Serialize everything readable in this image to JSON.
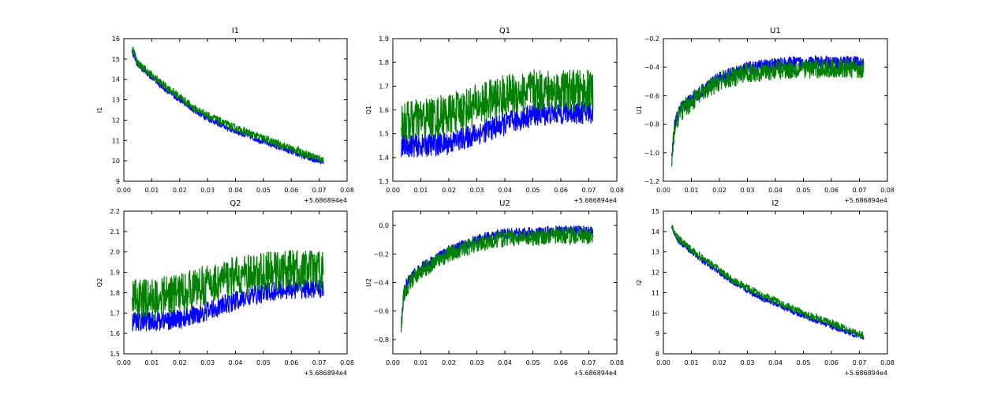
{
  "chart_data": [
    {
      "type": "line",
      "title": "I1",
      "xlabel": "",
      "ylabel": "I1",
      "xlim": [
        0.0,
        0.08
      ],
      "ylim": [
        9,
        16
      ],
      "xticks": [
        "0.00",
        "0.01",
        "0.02",
        "0.03",
        "0.04",
        "0.05",
        "0.06",
        "0.07",
        "0.08"
      ],
      "yticks": [
        "9",
        "10",
        "11",
        "12",
        "13",
        "14",
        "15",
        "16"
      ],
      "offset_label": "+5.686894e4",
      "series": [
        {
          "name": "blue",
          "color": "#0000ff",
          "x": [
            0.003,
            0.005,
            0.01,
            0.015,
            0.02,
            0.025,
            0.03,
            0.035,
            0.04,
            0.045,
            0.05,
            0.055,
            0.06,
            0.065,
            0.0715
          ],
          "y": [
            15.4,
            14.7,
            14.1,
            13.5,
            13.0,
            12.5,
            12.1,
            11.75,
            11.45,
            11.2,
            10.95,
            10.7,
            10.45,
            10.2,
            9.95
          ],
          "noise": 0.15
        },
        {
          "name": "green",
          "color": "#008000",
          "x": [
            0.003,
            0.005,
            0.01,
            0.015,
            0.02,
            0.025,
            0.03,
            0.035,
            0.04,
            0.045,
            0.05,
            0.055,
            0.06,
            0.065,
            0.0715
          ],
          "y": [
            15.6,
            14.8,
            14.2,
            13.65,
            13.15,
            12.6,
            12.25,
            11.9,
            11.6,
            11.35,
            11.1,
            10.85,
            10.6,
            10.35,
            10.05
          ],
          "noise": 0.2
        }
      ]
    },
    {
      "type": "line",
      "title": "Q1",
      "xlabel": "",
      "ylabel": "Q1",
      "xlim": [
        0.0,
        0.08
      ],
      "ylim": [
        1.3,
        1.9
      ],
      "xticks": [
        "0.00",
        "0.01",
        "0.02",
        "0.03",
        "0.04",
        "0.05",
        "0.06",
        "0.07",
        "0.08"
      ],
      "yticks": [
        "1.3",
        "1.4",
        "1.5",
        "1.6",
        "1.7",
        "1.8",
        "1.9"
      ],
      "offset_label": "+5.686894e4",
      "series": [
        {
          "name": "blue",
          "color": "#0000ff",
          "x": [
            0.003,
            0.01,
            0.02,
            0.03,
            0.04,
            0.05,
            0.06,
            0.0715
          ],
          "y": [
            1.45,
            1.45,
            1.46,
            1.5,
            1.54,
            1.58,
            1.59,
            1.59
          ],
          "noise": 0.05
        },
        {
          "name": "green",
          "color": "#008000",
          "x": [
            0.003,
            0.01,
            0.02,
            0.03,
            0.04,
            0.05,
            0.06,
            0.0715
          ],
          "y": [
            1.55,
            1.56,
            1.58,
            1.62,
            1.66,
            1.68,
            1.68,
            1.68
          ],
          "noise": 0.09
        }
      ]
    },
    {
      "type": "line",
      "title": "U1",
      "xlabel": "",
      "ylabel": "U1",
      "xlim": [
        0.0,
        0.08
      ],
      "ylim": [
        -1.2,
        -0.2
      ],
      "xticks": [
        "0.00",
        "0.01",
        "0.02",
        "0.03",
        "0.04",
        "0.05",
        "0.06",
        "0.07",
        "0.08"
      ],
      "yticks": [
        "−1.2",
        "−1.0",
        "−0.8",
        "−0.6",
        "−0.4",
        "−0.2"
      ],
      "offset_label": "+5.686894e4",
      "series": [
        {
          "name": "blue",
          "color": "#0000ff",
          "x": [
            0.003,
            0.004,
            0.006,
            0.01,
            0.015,
            0.02,
            0.03,
            0.04,
            0.05,
            0.06,
            0.0715
          ],
          "y": [
            -1.05,
            -0.8,
            -0.7,
            -0.62,
            -0.55,
            -0.48,
            -0.41,
            -0.38,
            -0.37,
            -0.37,
            -0.37
          ],
          "noise": 0.05
        },
        {
          "name": "green",
          "color": "#008000",
          "x": [
            0.003,
            0.004,
            0.006,
            0.01,
            0.015,
            0.02,
            0.03,
            0.04,
            0.05,
            0.06,
            0.0715
          ],
          "y": [
            -1.08,
            -0.82,
            -0.72,
            -0.64,
            -0.57,
            -0.5,
            -0.44,
            -0.42,
            -0.41,
            -0.41,
            -0.41
          ],
          "noise": 0.07
        }
      ]
    },
    {
      "type": "line",
      "title": "Q2",
      "xlabel": "",
      "ylabel": "Q2",
      "xlim": [
        0.0,
        0.08
      ],
      "ylim": [
        1.5,
        2.2
      ],
      "xticks": [
        "0.00",
        "0.01",
        "0.02",
        "0.03",
        "0.04",
        "0.05",
        "0.06",
        "0.07",
        "0.08"
      ],
      "yticks": [
        "1.5",
        "1.6",
        "1.7",
        "1.8",
        "1.9",
        "2.0",
        "2.1",
        "2.2"
      ],
      "offset_label": "+5.686894e4",
      "series": [
        {
          "name": "blue",
          "color": "#0000ff",
          "x": [
            0.003,
            0.01,
            0.02,
            0.03,
            0.04,
            0.05,
            0.06,
            0.0715
          ],
          "y": [
            1.66,
            1.66,
            1.67,
            1.71,
            1.76,
            1.8,
            1.82,
            1.82
          ],
          "noise": 0.05
        },
        {
          "name": "green",
          "color": "#008000",
          "x": [
            0.003,
            0.01,
            0.02,
            0.03,
            0.04,
            0.05,
            0.06,
            0.0715
          ],
          "y": [
            1.77,
            1.77,
            1.8,
            1.84,
            1.88,
            1.9,
            1.91,
            1.91
          ],
          "noise": 0.1
        }
      ]
    },
    {
      "type": "line",
      "title": "U2",
      "xlabel": "",
      "ylabel": "U2",
      "xlim": [
        0.0,
        0.08
      ],
      "ylim": [
        -0.9,
        0.1
      ],
      "xticks": [
        "0.00",
        "0.01",
        "0.02",
        "0.03",
        "0.04",
        "0.05",
        "0.06",
        "0.07",
        "0.08"
      ],
      "yticks": [
        "−0.8",
        "−0.6",
        "−0.4",
        "−0.2",
        "0.0"
      ],
      "offset_label": "+5.686894e4",
      "series": [
        {
          "name": "blue",
          "color": "#0000ff",
          "x": [
            0.003,
            0.004,
            0.006,
            0.01,
            0.015,
            0.02,
            0.03,
            0.04,
            0.05,
            0.06,
            0.0715
          ],
          "y": [
            -0.7,
            -0.45,
            -0.37,
            -0.3,
            -0.24,
            -0.18,
            -0.1,
            -0.06,
            -0.05,
            -0.04,
            -0.04
          ],
          "noise": 0.04
        },
        {
          "name": "green",
          "color": "#008000",
          "x": [
            0.003,
            0.004,
            0.006,
            0.01,
            0.015,
            0.02,
            0.03,
            0.04,
            0.05,
            0.06,
            0.0715
          ],
          "y": [
            -0.72,
            -0.48,
            -0.4,
            -0.32,
            -0.26,
            -0.2,
            -0.13,
            -0.09,
            -0.08,
            -0.07,
            -0.07
          ],
          "noise": 0.06
        }
      ]
    },
    {
      "type": "line",
      "title": "I2",
      "xlabel": "",
      "ylabel": "I2",
      "xlim": [
        0.0,
        0.08
      ],
      "ylim": [
        8,
        15
      ],
      "xticks": [
        "0.00",
        "0.01",
        "0.02",
        "0.03",
        "0.04",
        "0.05",
        "0.06",
        "0.07",
        "0.08"
      ],
      "yticks": [
        "8",
        "9",
        "10",
        "11",
        "12",
        "13",
        "14",
        "15"
      ],
      "offset_label": "+5.686894e4",
      "series": [
        {
          "name": "blue",
          "color": "#0000ff",
          "x": [
            0.003,
            0.005,
            0.01,
            0.015,
            0.02,
            0.025,
            0.03,
            0.035,
            0.04,
            0.045,
            0.05,
            0.055,
            0.06,
            0.065,
            0.0715
          ],
          "y": [
            14.2,
            13.6,
            13.0,
            12.45,
            12.0,
            11.5,
            11.1,
            10.75,
            10.45,
            10.15,
            9.85,
            9.6,
            9.35,
            9.1,
            8.8
          ],
          "noise": 0.13
        },
        {
          "name": "green",
          "color": "#008000",
          "x": [
            0.003,
            0.005,
            0.01,
            0.015,
            0.02,
            0.025,
            0.03,
            0.035,
            0.04,
            0.045,
            0.05,
            0.055,
            0.06,
            0.065,
            0.0715
          ],
          "y": [
            14.3,
            13.7,
            13.1,
            12.6,
            12.1,
            11.6,
            11.25,
            10.9,
            10.6,
            10.3,
            10.0,
            9.75,
            9.5,
            9.25,
            8.9
          ],
          "noise": 0.18
        }
      ]
    }
  ]
}
